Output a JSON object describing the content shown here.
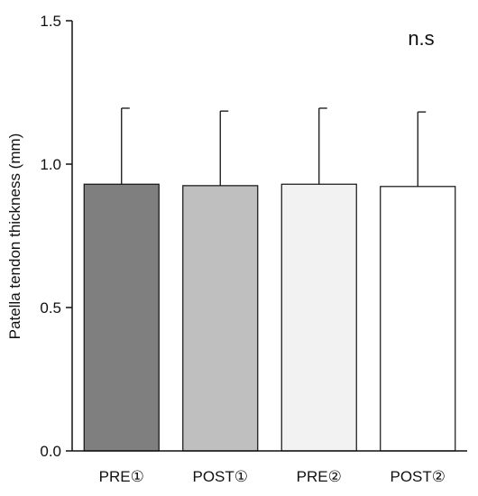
{
  "chart_data": {
    "type": "bar",
    "categories": [
      "PRE①",
      "POST①",
      "PRE②",
      "POST②"
    ],
    "values": [
      0.93,
      0.925,
      0.93,
      0.922
    ],
    "error_upper": [
      0.265,
      0.26,
      0.265,
      0.26
    ],
    "bar_colors": [
      "#7f7f7f",
      "#bfbfbf",
      "#f2f2f2",
      "#ffffff"
    ],
    "ylabel": "Patella tendon thickness (mm)",
    "xlabel": "",
    "ylim": [
      0,
      1.5
    ],
    "yticks": [
      0.0,
      0.5,
      1.0,
      1.5
    ],
    "ytick_labels": [
      "0.0",
      "0.5",
      "1.0",
      "1.5"
    ],
    "annotation": "n.s",
    "grid": false,
    "legend": false
  }
}
